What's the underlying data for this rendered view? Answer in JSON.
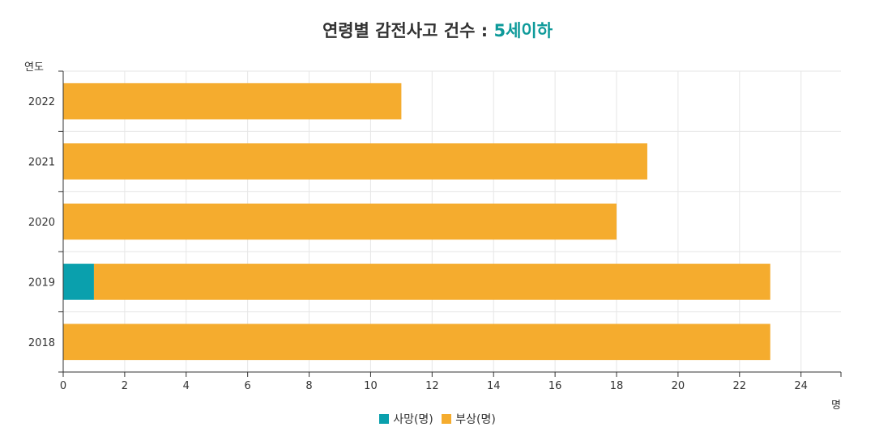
{
  "title": {
    "prefix": "연령별 감전사고 건수 : ",
    "highlight": "5세이하",
    "highlight_color": "#0e9a9a"
  },
  "chart_data": {
    "type": "bar",
    "orientation": "horizontal",
    "stacked": true,
    "categories": [
      "2018",
      "2019",
      "2020",
      "2021",
      "2022"
    ],
    "series": [
      {
        "name": "사망(명)",
        "color": "#0aa0ad",
        "values": [
          0,
          1,
          0,
          0,
          0
        ]
      },
      {
        "name": "부상(명)",
        "color": "#f5ac2e",
        "values": [
          23,
          22,
          18,
          19,
          11
        ]
      }
    ],
    "xlabel": "명",
    "ylabel": "연도",
    "xlim": [
      0,
      25.3
    ],
    "xticks": [
      0,
      2,
      4,
      6,
      8,
      10,
      12,
      14,
      16,
      18,
      20,
      22,
      24
    ],
    "grid": true,
    "legend_position": "bottom"
  }
}
